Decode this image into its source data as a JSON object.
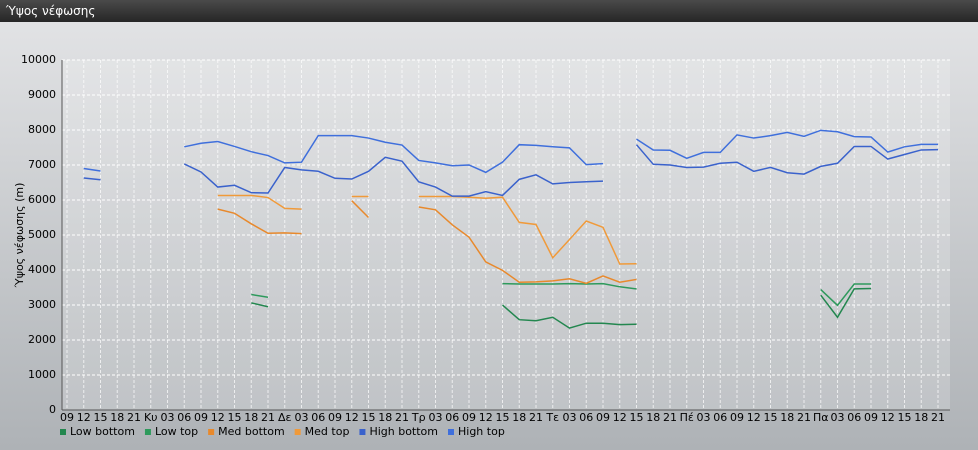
{
  "window": {
    "title": "Ύψος νέφωσης"
  },
  "chart_data": {
    "type": "line",
    "y_label": "Ύψος νέφωσης (m)",
    "categories": [
      "09",
      "12",
      "15",
      "18",
      "21",
      "Κυ",
      "03",
      "06",
      "09",
      "12",
      "15",
      "18",
      "21",
      "Δε",
      "03",
      "06",
      "09",
      "12",
      "15",
      "18",
      "21",
      "Τρ",
      "03",
      "06",
      "09",
      "12",
      "15",
      "18",
      "21",
      "Τε",
      "03",
      "06",
      "09",
      "12",
      "15",
      "18",
      "21",
      "Πέ",
      "03",
      "06",
      "09",
      "12",
      "15",
      "18",
      "21",
      "Πα",
      "03",
      "06",
      "09",
      "12",
      "15",
      "18",
      "21"
    ],
    "ylim": [
      0,
      10000
    ],
    "yticks": [
      0,
      1000,
      2000,
      3000,
      4000,
      5000,
      6000,
      7000,
      8000,
      9000,
      10000
    ],
    "grid": true,
    "legend": "bottom",
    "series": [
      {
        "name": "Low bottom",
        "color": "#23874f",
        "values": [
          null,
          null,
          null,
          null,
          null,
          null,
          null,
          null,
          null,
          null,
          null,
          3060,
          2950,
          null,
          null,
          null,
          null,
          null,
          null,
          null,
          null,
          null,
          null,
          null,
          null,
          null,
          3000,
          2580,
          2550,
          2650,
          2340,
          2480,
          2480,
          2440,
          2450,
          null,
          null,
          null,
          null,
          null,
          null,
          null,
          null,
          null,
          null,
          3280,
          2650,
          3460,
          3470,
          null,
          null,
          null,
          null
        ]
      },
      {
        "name": "Low top",
        "color": "#2e9a5c",
        "values": [
          null,
          null,
          null,
          null,
          null,
          null,
          null,
          null,
          null,
          null,
          null,
          3300,
          3220,
          null,
          null,
          null,
          null,
          null,
          null,
          null,
          null,
          null,
          null,
          null,
          null,
          null,
          3610,
          3600,
          3600,
          3600,
          3610,
          3600,
          3610,
          3520,
          3460,
          null,
          null,
          null,
          null,
          null,
          null,
          null,
          null,
          null,
          null,
          3440,
          2990,
          3600,
          3600,
          null,
          null,
          null,
          null
        ]
      },
      {
        "name": "Med bottom",
        "color": "#e8892c",
        "values": [
          null,
          null,
          null,
          null,
          null,
          null,
          null,
          null,
          null,
          5740,
          5620,
          5320,
          5050,
          5060,
          5040,
          null,
          null,
          5980,
          5500,
          null,
          null,
          5800,
          5720,
          5290,
          4940,
          4230,
          3990,
          3650,
          3660,
          3690,
          3750,
          3620,
          3830,
          3650,
          3730,
          null,
          null,
          null,
          null,
          null,
          null,
          null,
          null,
          null,
          null,
          null,
          null,
          null,
          null,
          null,
          null,
          null,
          null
        ]
      },
      {
        "name": "Med top",
        "color": "#f09a3a",
        "values": [
          null,
          null,
          null,
          null,
          null,
          null,
          null,
          null,
          null,
          6130,
          6130,
          6130,
          6070,
          5760,
          5740,
          null,
          null,
          6100,
          6100,
          null,
          null,
          6100,
          6100,
          6100,
          6080,
          6050,
          6080,
          5360,
          5300,
          4350,
          4870,
          5400,
          5220,
          4170,
          4180,
          null,
          null,
          null,
          null,
          null,
          null,
          null,
          null,
          null,
          null,
          null,
          null,
          null,
          null,
          null,
          null,
          null,
          null
        ]
      },
      {
        "name": "High bottom",
        "color": "#3a62cc",
        "values": [
          null,
          6630,
          6580,
          null,
          null,
          null,
          null,
          7030,
          6800,
          6370,
          6420,
          6210,
          6200,
          6930,
          6860,
          6820,
          6620,
          6600,
          6820,
          7220,
          7110,
          6520,
          6370,
          6110,
          6110,
          6240,
          6130,
          6590,
          6720,
          6460,
          6500,
          6520,
          6540,
          null,
          7580,
          7020,
          7000,
          6930,
          6940,
          7050,
          7080,
          6820,
          6930,
          6780,
          6740,
          6960,
          7050,
          7530,
          7530,
          7170,
          7300,
          7430,
          7440
        ]
      },
      {
        "name": "High top",
        "color": "#3f6fdc",
        "values": [
          null,
          6900,
          6830,
          null,
          null,
          null,
          null,
          7520,
          7620,
          7670,
          7530,
          7380,
          7270,
          7060,
          7080,
          7840,
          7840,
          7840,
          7770,
          7650,
          7570,
          7130,
          7060,
          6980,
          7000,
          6790,
          7080,
          7580,
          7560,
          7520,
          7490,
          7010,
          7040,
          null,
          7740,
          7430,
          7420,
          7190,
          7360,
          7360,
          7860,
          7770,
          7840,
          7930,
          7820,
          7990,
          7950,
          7810,
          7800,
          7370,
          7520,
          7590,
          7590
        ]
      }
    ]
  }
}
